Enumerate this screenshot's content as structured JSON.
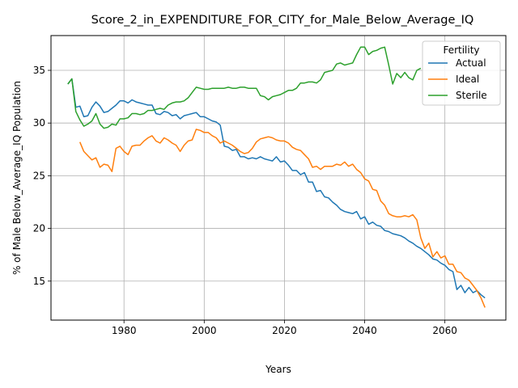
{
  "chart_data": {
    "type": "line",
    "title": "Score_2_in_EXPENDITURE_FOR_CITY_for_Male_Below_Average_IQ",
    "xlabel": "Years",
    "ylabel": "% of Male Below_Average_IQ Population",
    "xlim": [
      1961.8,
      2075.2
    ],
    "ylim": [
      11.3,
      38.3
    ],
    "xticks": [
      1980,
      2000,
      2020,
      2040,
      2060
    ],
    "xtick_labels": [
      "1980",
      "2000",
      "2020",
      "2040",
      "2060"
    ],
    "yticks": [
      15,
      20,
      25,
      30,
      35
    ],
    "ytick_labels": [
      "15",
      "20",
      "25",
      "30",
      "35"
    ],
    "grid": true,
    "legend": {
      "title": "Fertility",
      "position": "top-right"
    },
    "series": [
      {
        "name": "Actual",
        "color": "#1f77b4",
        "points": [
          [
            1966,
            33.7
          ],
          [
            1967,
            34.2
          ],
          [
            1968,
            31.5
          ],
          [
            1969,
            31.6
          ],
          [
            1970,
            30.6
          ],
          [
            1971,
            30.7
          ],
          [
            1972,
            31.5
          ],
          [
            1973,
            32.0
          ],
          [
            1974,
            31.6
          ],
          [
            1975,
            31.0
          ],
          [
            1976,
            31.1
          ],
          [
            1977,
            31.4
          ],
          [
            1978,
            31.7
          ],
          [
            1979,
            32.1
          ],
          [
            1980,
            32.1
          ],
          [
            1981,
            31.9
          ],
          [
            1982,
            32.2
          ],
          [
            1983,
            32.0
          ],
          [
            1984,
            31.9
          ],
          [
            1985,
            31.8
          ],
          [
            1986,
            31.7
          ],
          [
            1987,
            31.7
          ],
          [
            1988,
            30.9
          ],
          [
            1989,
            30.8
          ],
          [
            1990,
            31.1
          ],
          [
            1991,
            31.0
          ],
          [
            1992,
            30.7
          ],
          [
            1993,
            30.8
          ],
          [
            1994,
            30.4
          ],
          [
            1995,
            30.7
          ],
          [
            1996,
            30.8
          ],
          [
            1997,
            30.9
          ],
          [
            1998,
            31.0
          ],
          [
            1999,
            30.6
          ],
          [
            2000,
            30.6
          ],
          [
            2001,
            30.4
          ],
          [
            2002,
            30.2
          ],
          [
            2003,
            30.1
          ],
          [
            2004,
            29.8
          ],
          [
            2005,
            27.8
          ],
          [
            2006,
            27.7
          ],
          [
            2007,
            27.4
          ],
          [
            2008,
            27.5
          ],
          [
            2009,
            26.8
          ],
          [
            2010,
            26.8
          ],
          [
            2011,
            26.6
          ],
          [
            2012,
            26.7
          ],
          [
            2013,
            26.6
          ],
          [
            2014,
            26.8
          ],
          [
            2015,
            26.6
          ],
          [
            2016,
            26.5
          ],
          [
            2017,
            26.4
          ],
          [
            2018,
            26.8
          ],
          [
            2019,
            26.3
          ],
          [
            2020,
            26.4
          ],
          [
            2021,
            26.0
          ],
          [
            2022,
            25.5
          ],
          [
            2023,
            25.5
          ],
          [
            2024,
            25.1
          ],
          [
            2025,
            25.3
          ],
          [
            2026,
            24.4
          ],
          [
            2027,
            24.4
          ],
          [
            2028,
            23.5
          ],
          [
            2029,
            23.6
          ],
          [
            2030,
            23.0
          ],
          [
            2031,
            22.9
          ],
          [
            2032,
            22.5
          ],
          [
            2033,
            22.2
          ],
          [
            2034,
            21.8
          ],
          [
            2035,
            21.6
          ],
          [
            2036,
            21.5
          ],
          [
            2037,
            21.4
          ],
          [
            2038,
            21.6
          ],
          [
            2039,
            20.9
          ],
          [
            2040,
            21.1
          ],
          [
            2041,
            20.4
          ],
          [
            2042,
            20.6
          ],
          [
            2043,
            20.3
          ],
          [
            2044,
            20.2
          ],
          [
            2045,
            19.8
          ],
          [
            2046,
            19.7
          ],
          [
            2047,
            19.5
          ],
          [
            2048,
            19.4
          ],
          [
            2049,
            19.3
          ],
          [
            2050,
            19.1
          ],
          [
            2051,
            18.8
          ],
          [
            2052,
            18.6
          ],
          [
            2053,
            18.3
          ],
          [
            2054,
            18.1
          ],
          [
            2055,
            17.8
          ],
          [
            2056,
            17.5
          ],
          [
            2057,
            17.1
          ],
          [
            2058,
            17.0
          ],
          [
            2059,
            16.7
          ],
          [
            2060,
            16.5
          ],
          [
            2061,
            16.1
          ],
          [
            2062,
            15.9
          ],
          [
            2063,
            14.2
          ],
          [
            2064,
            14.6
          ],
          [
            2065,
            13.9
          ],
          [
            2066,
            14.4
          ],
          [
            2067,
            13.9
          ],
          [
            2068,
            14.1
          ],
          [
            2069,
            13.7
          ],
          [
            2070,
            13.4
          ]
        ]
      },
      {
        "name": "Ideal",
        "color": "#ff7f0e",
        "points": [
          [
            1969,
            28.2
          ],
          [
            1970,
            27.3
          ],
          [
            1971,
            26.9
          ],
          [
            1972,
            26.5
          ],
          [
            1973,
            26.7
          ],
          [
            1974,
            25.8
          ],
          [
            1975,
            26.1
          ],
          [
            1976,
            26.0
          ],
          [
            1977,
            25.4
          ],
          [
            1978,
            27.6
          ],
          [
            1979,
            27.8
          ],
          [
            1980,
            27.3
          ],
          [
            1981,
            27.0
          ],
          [
            1982,
            27.8
          ],
          [
            1983,
            27.9
          ],
          [
            1984,
            27.9
          ],
          [
            1985,
            28.3
          ],
          [
            1986,
            28.6
          ],
          [
            1987,
            28.8
          ],
          [
            1988,
            28.3
          ],
          [
            1989,
            28.1
          ],
          [
            1990,
            28.6
          ],
          [
            1991,
            28.4
          ],
          [
            1992,
            28.1
          ],
          [
            1993,
            27.9
          ],
          [
            1994,
            27.3
          ],
          [
            1995,
            27.9
          ],
          [
            1996,
            28.3
          ],
          [
            1997,
            28.4
          ],
          [
            1998,
            29.4
          ],
          [
            1999,
            29.3
          ],
          [
            2000,
            29.1
          ],
          [
            2001,
            29.1
          ],
          [
            2002,
            28.8
          ],
          [
            2003,
            28.6
          ],
          [
            2004,
            28.1
          ],
          [
            2005,
            28.3
          ],
          [
            2006,
            28.1
          ],
          [
            2007,
            27.9
          ],
          [
            2008,
            27.6
          ],
          [
            2009,
            27.3
          ],
          [
            2010,
            27.1
          ],
          [
            2011,
            27.2
          ],
          [
            2012,
            27.6
          ],
          [
            2013,
            28.2
          ],
          [
            2014,
            28.5
          ],
          [
            2015,
            28.6
          ],
          [
            2016,
            28.7
          ],
          [
            2017,
            28.6
          ],
          [
            2018,
            28.4
          ],
          [
            2019,
            28.3
          ],
          [
            2020,
            28.3
          ],
          [
            2021,
            28.1
          ],
          [
            2022,
            27.7
          ],
          [
            2023,
            27.5
          ],
          [
            2024,
            27.4
          ],
          [
            2025,
            27.0
          ],
          [
            2026,
            26.6
          ],
          [
            2027,
            25.8
          ],
          [
            2028,
            25.9
          ],
          [
            2029,
            25.6
          ],
          [
            2030,
            25.9
          ],
          [
            2031,
            25.9
          ],
          [
            2032,
            25.9
          ],
          [
            2033,
            26.1
          ],
          [
            2034,
            26.0
          ],
          [
            2035,
            26.3
          ],
          [
            2036,
            25.9
          ],
          [
            2037,
            26.1
          ],
          [
            2038,
            25.6
          ],
          [
            2039,
            25.3
          ],
          [
            2040,
            24.7
          ],
          [
            2041,
            24.5
          ],
          [
            2042,
            23.7
          ],
          [
            2043,
            23.6
          ],
          [
            2044,
            22.6
          ],
          [
            2045,
            22.2
          ],
          [
            2046,
            21.4
          ],
          [
            2047,
            21.2
          ],
          [
            2048,
            21.1
          ],
          [
            2049,
            21.1
          ],
          [
            2050,
            21.2
          ],
          [
            2051,
            21.1
          ],
          [
            2052,
            21.3
          ],
          [
            2053,
            20.8
          ],
          [
            2054,
            19.1
          ],
          [
            2055,
            18.1
          ],
          [
            2056,
            18.6
          ],
          [
            2057,
            17.3
          ],
          [
            2058,
            17.8
          ],
          [
            2059,
            17.2
          ],
          [
            2060,
            17.4
          ],
          [
            2061,
            16.6
          ],
          [
            2062,
            16.6
          ],
          [
            2063,
            15.9
          ],
          [
            2064,
            15.8
          ],
          [
            2065,
            15.3
          ],
          [
            2066,
            15.1
          ],
          [
            2067,
            14.6
          ],
          [
            2068,
            14.1
          ],
          [
            2069,
            13.4
          ],
          [
            2070,
            12.5
          ]
        ]
      },
      {
        "name": "Sterile",
        "color": "#2ca02c",
        "points": [
          [
            1966,
            33.7
          ],
          [
            1967,
            34.2
          ],
          [
            1968,
            31.1
          ],
          [
            1969,
            30.3
          ],
          [
            1970,
            29.7
          ],
          [
            1971,
            29.9
          ],
          [
            1972,
            30.2
          ],
          [
            1973,
            30.9
          ],
          [
            1974,
            29.9
          ],
          [
            1975,
            29.5
          ],
          [
            1976,
            29.6
          ],
          [
            1977,
            29.9
          ],
          [
            1978,
            29.8
          ],
          [
            1979,
            30.4
          ],
          [
            1980,
            30.4
          ],
          [
            1981,
            30.5
          ],
          [
            1982,
            30.9
          ],
          [
            1983,
            30.9
          ],
          [
            1984,
            30.8
          ],
          [
            1985,
            30.9
          ],
          [
            1986,
            31.2
          ],
          [
            1987,
            31.2
          ],
          [
            1988,
            31.3
          ],
          [
            1989,
            31.4
          ],
          [
            1990,
            31.3
          ],
          [
            1991,
            31.7
          ],
          [
            1992,
            31.9
          ],
          [
            1993,
            32.0
          ],
          [
            1994,
            32.0
          ],
          [
            1995,
            32.1
          ],
          [
            1996,
            32.4
          ],
          [
            1997,
            32.9
          ],
          [
            1998,
            33.4
          ],
          [
            1999,
            33.3
          ],
          [
            2000,
            33.2
          ],
          [
            2001,
            33.2
          ],
          [
            2002,
            33.3
          ],
          [
            2003,
            33.3
          ],
          [
            2004,
            33.3
          ],
          [
            2005,
            33.3
          ],
          [
            2006,
            33.4
          ],
          [
            2007,
            33.3
          ],
          [
            2008,
            33.3
          ],
          [
            2009,
            33.4
          ],
          [
            2010,
            33.4
          ],
          [
            2011,
            33.3
          ],
          [
            2012,
            33.3
          ],
          [
            2013,
            33.3
          ],
          [
            2014,
            32.6
          ],
          [
            2015,
            32.5
          ],
          [
            2016,
            32.2
          ],
          [
            2017,
            32.5
          ],
          [
            2018,
            32.6
          ],
          [
            2019,
            32.7
          ],
          [
            2020,
            32.9
          ],
          [
            2021,
            33.1
          ],
          [
            2022,
            33.1
          ],
          [
            2023,
            33.3
          ],
          [
            2024,
            33.8
          ],
          [
            2025,
            33.8
          ],
          [
            2026,
            33.9
          ],
          [
            2027,
            33.9
          ],
          [
            2028,
            33.8
          ],
          [
            2029,
            34.1
          ],
          [
            2030,
            34.8
          ],
          [
            2031,
            34.9
          ],
          [
            2032,
            35.0
          ],
          [
            2033,
            35.6
          ],
          [
            2034,
            35.7
          ],
          [
            2035,
            35.5
          ],
          [
            2036,
            35.6
          ],
          [
            2037,
            35.7
          ],
          [
            2038,
            36.5
          ],
          [
            2039,
            37.2
          ],
          [
            2040,
            37.2
          ],
          [
            2041,
            36.5
          ],
          [
            2042,
            36.8
          ],
          [
            2043,
            36.9
          ],
          [
            2044,
            37.1
          ],
          [
            2045,
            37.2
          ],
          [
            2046,
            35.5
          ],
          [
            2047,
            33.7
          ],
          [
            2048,
            34.7
          ],
          [
            2049,
            34.3
          ],
          [
            2050,
            34.8
          ],
          [
            2051,
            34.3
          ],
          [
            2052,
            34.1
          ],
          [
            2053,
            35.0
          ],
          [
            2054,
            35.2
          ]
        ]
      }
    ]
  }
}
